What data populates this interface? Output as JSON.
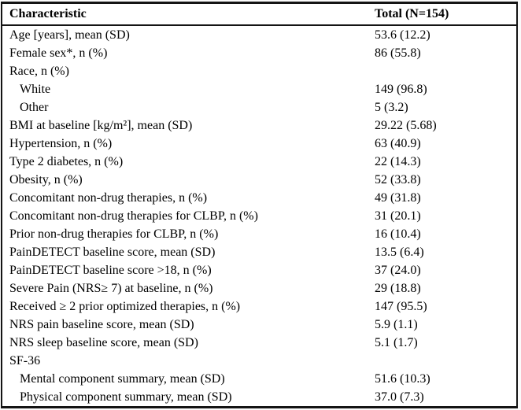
{
  "page": {
    "background_color": "#fbfbfb",
    "table_background_color": "#ffffff",
    "border_color": "#141414",
    "text_color": "#000000"
  },
  "table": {
    "header": {
      "characteristic": "Characteristic",
      "total": "Total (N=154)"
    },
    "rows": [
      {
        "label": "Age [years], mean (SD)",
        "value": "53.6 (12.2)",
        "indent": 0
      },
      {
        "label": "Female sex*, n (%)",
        "value": "86 (55.8)",
        "indent": 0
      },
      {
        "label": "Race, n (%)",
        "value": "",
        "indent": 0
      },
      {
        "label": "White",
        "value": "149 (96.8)",
        "indent": 1
      },
      {
        "label": "Other",
        "value": "5 (3.2)",
        "indent": 1
      },
      {
        "label": "BMI at baseline [kg/m²], mean (SD)",
        "value": "29.22 (5.68)",
        "indent": 0
      },
      {
        "label": "Hypertension, n (%)",
        "value": "63 (40.9)",
        "indent": 0
      },
      {
        "label": "Type 2 diabetes, n (%)",
        "value": "22 (14.3)",
        "indent": 0
      },
      {
        "label": "Obesity, n (%)",
        "value": "52 (33.8)",
        "indent": 0
      },
      {
        "label": "Concomitant non-drug therapies, n (%)",
        "value": "49 (31.8)",
        "indent": 0
      },
      {
        "label": "Concomitant non-drug therapies for CLBP, n (%)",
        "value": "31 (20.1)",
        "indent": 0
      },
      {
        "label": "Prior non-drug therapies for CLBP, n (%)",
        "value": "16 (10.4)",
        "indent": 0
      },
      {
        "label": "PainDETECT baseline score, mean (SD)",
        "value": "13.5 (6.4)",
        "indent": 0
      },
      {
        "label": "PainDETECT baseline score >18, n (%)",
        "value": "37 (24.0)",
        "indent": 0
      },
      {
        "label": "Severe Pain (NRS≥ 7) at baseline, n (%)",
        "value": "29 (18.8)",
        "indent": 0
      },
      {
        "label": "Received ≥ 2 prior optimized therapies, n (%)",
        "value": "147 (95.5)",
        "indent": 0
      },
      {
        "label": "NRS pain baseline score, mean (SD)",
        "value": "5.9 (1.1)",
        "indent": 0
      },
      {
        "label": "NRS sleep baseline score, mean (SD)",
        "value": "5.1 (1.7)",
        "indent": 0
      },
      {
        "label": "SF-36",
        "value": "",
        "indent": 0
      },
      {
        "label": "Mental component summary, mean (SD)",
        "value": "51.6 (10.3)",
        "indent": 1
      },
      {
        "label": "Physical component summary, mean (SD)",
        "value": "37.0 (7.3)",
        "indent": 1
      }
    ]
  }
}
